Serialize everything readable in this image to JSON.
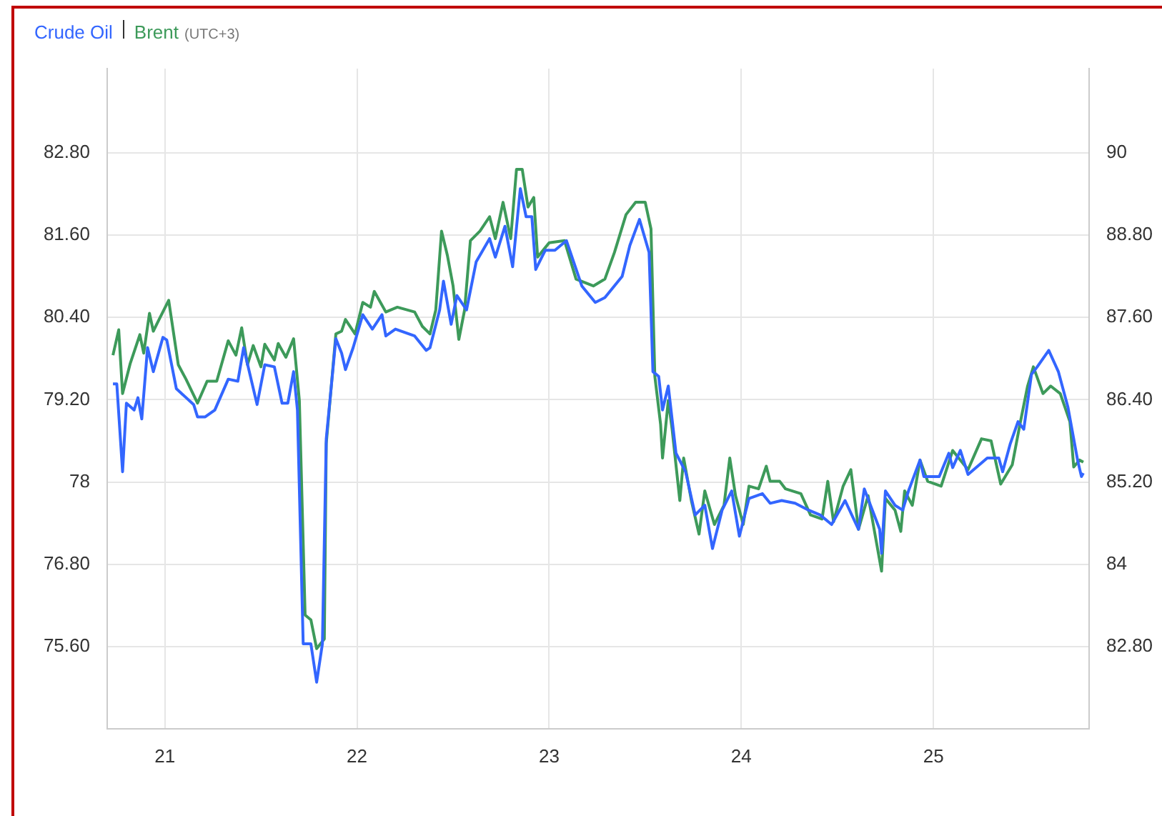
{
  "chart_data": {
    "type": "line",
    "subtitle": "(UTC+3)",
    "legend": "top left",
    "grid": true,
    "marker": "none",
    "line_style": "solid",
    "xlim": [
      20.7,
      25.81
    ],
    "xticks": [
      21,
      22,
      23,
      24,
      25
    ],
    "ylim": [
      74.4,
      84.03
    ],
    "yticks": [
      {
        "value": 75.6,
        "label": "75.60"
      },
      {
        "value": 76.8,
        "label": "76.80"
      },
      78,
      {
        "value": 79.2,
        "label": "79.20"
      },
      {
        "value": 80.4,
        "label": "80.40"
      },
      {
        "value": 81.6,
        "label": "81.60"
      },
      {
        "value": 82.8,
        "label": "82.80"
      }
    ],
    "y2lim": [
      81.6,
      91.23
    ],
    "y2ticks": [
      {
        "value": 82.8,
        "label": "82.80"
      },
      84,
      {
        "value": 85.2,
        "label": "85.20"
      },
      {
        "value": 86.4,
        "label": "86.40"
      },
      {
        "value": 87.6,
        "label": "87.60"
      },
      {
        "value": 88.8,
        "label": "88.80"
      },
      90
    ],
    "series": [
      {
        "name": "Crude Oil",
        "color": "#3366ff",
        "x": [
          20.73,
          20.75,
          20.78,
          20.8,
          20.84,
          20.86,
          20.88,
          20.91,
          20.94,
          20.99,
          21.01,
          21.06,
          21.15,
          21.17,
          21.21,
          21.26,
          21.33,
          21.38,
          21.41,
          21.48,
          21.52,
          21.57,
          21.61,
          21.64,
          21.67,
          21.69,
          21.72,
          21.76,
          21.79,
          21.82,
          21.84,
          21.89,
          21.92,
          21.94,
          21.98,
          22.03,
          22.08,
          22.13,
          22.15,
          22.2,
          22.3,
          22.36,
          22.38,
          22.43,
          22.45,
          22.49,
          22.52,
          22.57,
          22.62,
          22.69,
          22.72,
          22.77,
          22.81,
          22.85,
          22.88,
          22.91,
          22.93,
          22.98,
          23.03,
          23.09,
          23.17,
          23.24,
          23.29,
          23.38,
          23.42,
          23.47,
          23.52,
          23.54,
          23.57,
          23.59,
          23.62,
          23.66,
          23.71,
          23.76,
          23.81,
          23.85,
          23.9,
          23.95,
          23.99,
          24.04,
          24.11,
          24.15,
          24.21,
          24.28,
          24.35,
          24.41,
          24.47,
          24.54,
          24.61,
          24.64,
          24.72,
          24.73,
          24.75,
          24.8,
          24.84,
          24.87,
          24.93,
          24.95,
          25.03,
          25.08,
          25.1,
          25.14,
          25.18,
          25.28,
          25.34,
          25.36,
          25.4,
          25.44,
          25.47,
          25.51,
          25.54,
          25.6,
          25.65,
          25.7,
          25.75,
          25.77,
          25.78
        ],
        "values": [
          79.43,
          79.43,
          78.15,
          79.15,
          79.05,
          79.23,
          78.92,
          79.96,
          79.61,
          80.11,
          80.07,
          79.36,
          79.13,
          78.95,
          78.95,
          79.05,
          79.5,
          79.47,
          79.96,
          79.13,
          79.71,
          79.68,
          79.15,
          79.15,
          79.61,
          79.05,
          75.64,
          75.64,
          75.08,
          75.64,
          78.63,
          80.09,
          79.88,
          79.64,
          79.96,
          80.44,
          80.23,
          80.44,
          80.13,
          80.23,
          80.13,
          79.92,
          79.96,
          80.51,
          80.93,
          80.3,
          80.72,
          80.51,
          81.21,
          81.55,
          81.28,
          81.73,
          81.14,
          82.28,
          81.87,
          81.87,
          81.1,
          81.38,
          81.38,
          81.52,
          80.86,
          80.62,
          80.69,
          81.0,
          81.45,
          81.83,
          81.35,
          79.61,
          79.54,
          79.05,
          79.4,
          78.42,
          78.15,
          77.52,
          77.66,
          77.03,
          77.59,
          77.87,
          77.21,
          77.76,
          77.83,
          77.69,
          77.73,
          77.69,
          77.59,
          77.52,
          77.38,
          77.73,
          77.31,
          77.9,
          77.31,
          76.96,
          77.87,
          77.66,
          77.59,
          77.87,
          78.32,
          78.08,
          78.08,
          78.42,
          78.21,
          78.46,
          78.11,
          78.35,
          78.35,
          78.15,
          78.56,
          78.88,
          78.77,
          79.57,
          79.68,
          79.92,
          79.61,
          79.09,
          78.32,
          78.08,
          78.13
        ]
      },
      {
        "name": "Brent",
        "color": "#3d9a5a",
        "axis": "y2",
        "x": [
          20.73,
          20.76,
          20.78,
          20.82,
          20.87,
          20.89,
          20.92,
          20.94,
          20.97,
          21.02,
          21.07,
          21.11,
          21.17,
          21.22,
          21.27,
          21.33,
          21.37,
          21.4,
          21.43,
          21.46,
          21.5,
          21.52,
          21.57,
          21.59,
          21.63,
          21.67,
          21.7,
          21.73,
          21.76,
          21.79,
          21.83,
          21.84,
          21.89,
          21.92,
          21.94,
          21.99,
          22.03,
          22.07,
          22.09,
          22.15,
          22.21,
          22.3,
          22.34,
          22.38,
          22.41,
          22.44,
          22.47,
          22.5,
          22.53,
          22.56,
          22.59,
          22.64,
          22.69,
          22.72,
          22.76,
          22.8,
          22.83,
          22.86,
          22.89,
          22.92,
          22.94,
          23.0,
          23.08,
          23.14,
          23.23,
          23.29,
          23.34,
          23.4,
          23.45,
          23.5,
          23.53,
          23.55,
          23.58,
          23.59,
          23.62,
          23.64,
          23.68,
          23.7,
          23.74,
          23.78,
          23.81,
          23.86,
          23.91,
          23.94,
          23.97,
          24.01,
          24.04,
          24.09,
          24.13,
          24.15,
          24.2,
          24.23,
          24.31,
          24.36,
          24.42,
          24.45,
          24.48,
          24.53,
          24.57,
          24.61,
          24.66,
          24.73,
          24.75,
          24.8,
          24.83,
          24.85,
          24.89,
          24.93,
          24.97,
          25.04,
          25.1,
          25.14,
          25.18,
          25.25,
          25.3,
          25.35,
          25.41,
          25.45,
          25.49,
          25.52,
          25.57,
          25.61,
          25.66,
          25.71,
          25.73,
          25.76,
          25.78
        ],
        "values": [
          87.05,
          87.42,
          86.49,
          86.93,
          87.35,
          87.08,
          87.66,
          87.4,
          87.57,
          87.85,
          86.91,
          86.7,
          86.35,
          86.67,
          86.67,
          87.26,
          87.05,
          87.45,
          86.91,
          87.19,
          86.88,
          87.21,
          86.98,
          87.22,
          87.02,
          87.29,
          86.39,
          83.26,
          83.19,
          82.77,
          82.91,
          85.76,
          87.36,
          87.4,
          87.57,
          87.36,
          87.82,
          87.75,
          87.98,
          87.68,
          87.75,
          87.68,
          87.47,
          87.36,
          87.71,
          88.86,
          88.51,
          88.06,
          87.28,
          87.71,
          88.72,
          88.86,
          89.07,
          88.75,
          89.28,
          88.75,
          89.76,
          89.76,
          89.21,
          89.35,
          88.48,
          88.69,
          88.72,
          88.16,
          88.06,
          88.16,
          88.55,
          89.1,
          89.28,
          89.28,
          88.89,
          86.74,
          86.04,
          85.55,
          86.39,
          85.97,
          84.93,
          85.55,
          84.93,
          84.44,
          85.07,
          84.58,
          84.86,
          85.55,
          85.0,
          84.58,
          85.14,
          85.1,
          85.43,
          85.21,
          85.21,
          85.1,
          85.03,
          84.72,
          84.66,
          85.21,
          84.62,
          85.14,
          85.38,
          84.51,
          85.0,
          83.9,
          84.96,
          84.79,
          84.48,
          85.07,
          84.86,
          85.52,
          85.21,
          85.14,
          85.66,
          85.52,
          85.38,
          85.83,
          85.8,
          85.17,
          85.45,
          86.04,
          86.6,
          86.88,
          86.49,
          86.6,
          86.49,
          86.08,
          85.42,
          85.52,
          85.49
        ]
      }
    ]
  }
}
